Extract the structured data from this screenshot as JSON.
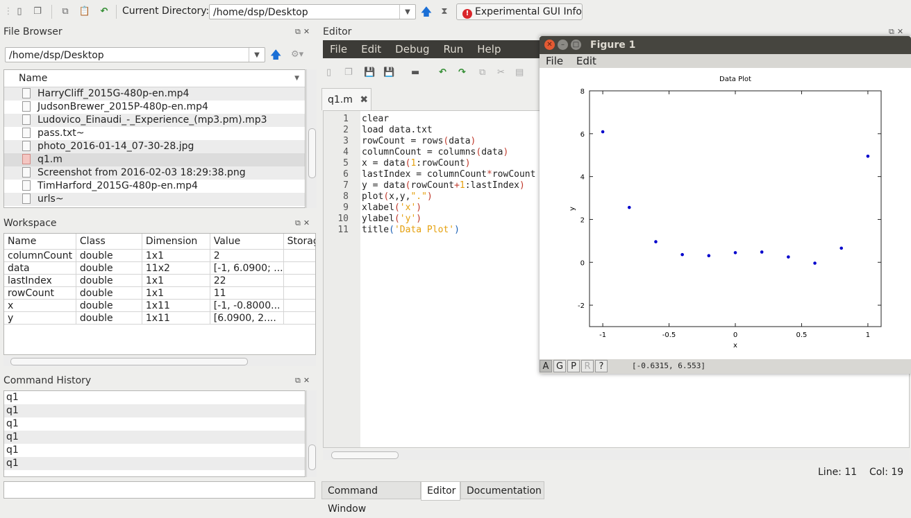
{
  "toolbar": {
    "current_directory_label": "Current Directory:",
    "current_directory_value": "/home/dsp/Desktop",
    "info_button": "Experimental GUI Info"
  },
  "file_browser": {
    "title": "File Browser",
    "path": "/home/dsp/Desktop",
    "column_name": "Name",
    "files": [
      {
        "name": "HarryCliff_2015G-480p-en.mp4"
      },
      {
        "name": "JudsonBrewer_2015P-480p-en.mp4"
      },
      {
        "name": "Ludovico_Einaudi_-_Experience_(mp3.pm).mp3"
      },
      {
        "name": "pass.txt~"
      },
      {
        "name": "photo_2016-01-14_07-30-28.jpg"
      },
      {
        "name": "q1.m"
      },
      {
        "name": "Screenshot from 2016-02-03 18:29:38.png"
      },
      {
        "name": "TimHarford_2015G-480p-en.mp4"
      },
      {
        "name": "urls~"
      }
    ]
  },
  "workspace": {
    "title": "Workspace",
    "columns": [
      "Name",
      "Class",
      "Dimension",
      "Value",
      "Storag"
    ],
    "rows": [
      [
        "columnCount",
        "double",
        "1x1",
        "2",
        ""
      ],
      [
        "data",
        "double",
        "11x2",
        "[-1, 6.0900; ...",
        ""
      ],
      [
        "lastIndex",
        "double",
        "1x1",
        "22",
        ""
      ],
      [
        "rowCount",
        "double",
        "1x1",
        "11",
        ""
      ],
      [
        "x",
        "double",
        "1x11",
        "[-1, -0.8000...",
        ""
      ],
      [
        "y",
        "double",
        "1x11",
        "[6.0900, 2....",
        ""
      ]
    ]
  },
  "command_history": {
    "title": "Command History",
    "items": [
      "q1",
      "q1",
      "q1",
      "q1",
      "q1",
      "q1"
    ]
  },
  "editor": {
    "title": "Editor",
    "menu": [
      "File",
      "Edit",
      "Debug",
      "Run",
      "Help"
    ],
    "tab": "q1.m",
    "line_numbers": [
      "1",
      "2",
      "3",
      "4",
      "5",
      "6",
      "7",
      "8",
      "9",
      "10",
      "11"
    ],
    "status_line": "Line:  11",
    "status_col": "Col:  19"
  },
  "bottom_tabs": [
    "Command Window",
    "Editor",
    "Documentation"
  ],
  "figure": {
    "window_title": "Figure 1",
    "menu": [
      "File",
      "Edit"
    ],
    "toolbar_buttons": [
      "A",
      "G",
      "P",
      "R",
      "?"
    ],
    "coords": "[-0.6315, 6.553]"
  },
  "chart_data": {
    "type": "scatter",
    "title": "Data Plot",
    "xlabel": "x",
    "ylabel": "y",
    "xlim": [
      -1.1,
      1.1
    ],
    "ylim": [
      -3,
      8
    ],
    "xticks": [
      "-1",
      "-0.5",
      "0",
      "0.5",
      "1"
    ],
    "xtick_values": [
      -1,
      -0.5,
      0,
      0.5,
      1
    ],
    "yticks": [
      "-2",
      "0",
      "2",
      "4",
      "6",
      "8"
    ],
    "ytick_values": [
      -2,
      0,
      2,
      4,
      6,
      8
    ],
    "x": [
      -1,
      -0.8,
      -0.6,
      -0.4,
      -0.2,
      0,
      0.2,
      0.4,
      0.6,
      0.8,
      1
    ],
    "y": [
      6.09,
      2.56,
      0.96,
      0.36,
      0.31,
      0.45,
      0.48,
      0.25,
      -0.04,
      0.66,
      4.95
    ],
    "color": "#0000cc"
  }
}
